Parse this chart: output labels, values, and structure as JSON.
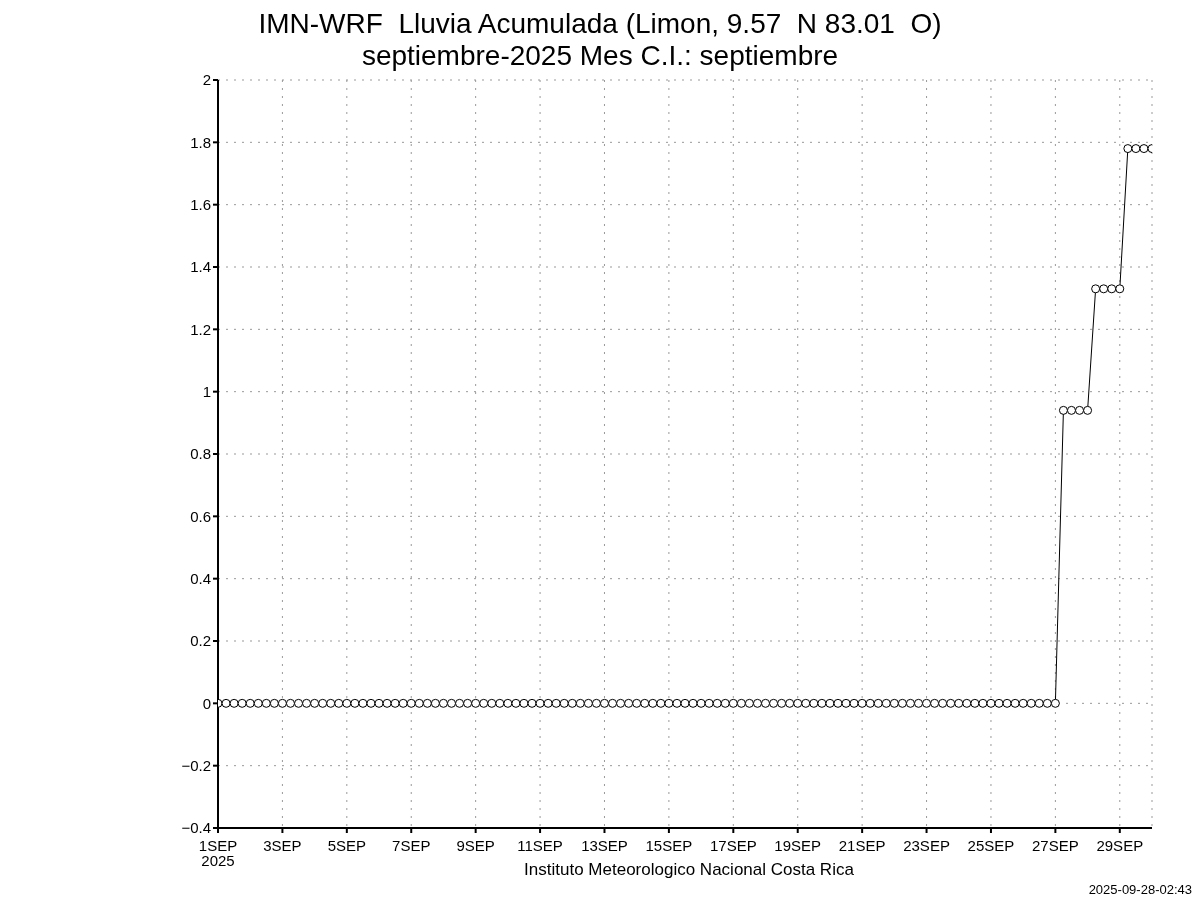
{
  "chart_data": {
    "type": "line",
    "title": "IMN-WRF  Lluvia Acumulada (Limon, 9.57  N 83.01  O)",
    "subtitle": "septiembre-2025 Mes C.I.: septiembre",
    "annotations": [
      "Instituto Meteorologico Nacional Costa Rica",
      "2025-09-28-02:43"
    ],
    "x": [
      "2025-09-01T00:00",
      "2025-09-01T06:00",
      "2025-09-01T12:00",
      "2025-09-01T18:00",
      "2025-09-02T00:00",
      "2025-09-02T06:00",
      "2025-09-02T12:00",
      "2025-09-02T18:00",
      "2025-09-03T00:00",
      "2025-09-03T06:00",
      "2025-09-03T12:00",
      "2025-09-03T18:00",
      "2025-09-04T00:00",
      "2025-09-04T06:00",
      "2025-09-04T12:00",
      "2025-09-04T18:00",
      "2025-09-05T00:00",
      "2025-09-05T06:00",
      "2025-09-05T12:00",
      "2025-09-05T18:00",
      "2025-09-06T00:00",
      "2025-09-06T06:00",
      "2025-09-06T12:00",
      "2025-09-06T18:00",
      "2025-09-07T00:00",
      "2025-09-07T06:00",
      "2025-09-07T12:00",
      "2025-09-07T18:00",
      "2025-09-08T00:00",
      "2025-09-08T06:00",
      "2025-09-08T12:00",
      "2025-09-08T18:00",
      "2025-09-09T00:00",
      "2025-09-09T06:00",
      "2025-09-09T12:00",
      "2025-09-09T18:00",
      "2025-09-10T00:00",
      "2025-09-10T06:00",
      "2025-09-10T12:00",
      "2025-09-10T18:00",
      "2025-09-11T00:00",
      "2025-09-11T06:00",
      "2025-09-11T12:00",
      "2025-09-11T18:00",
      "2025-09-12T00:00",
      "2025-09-12T06:00",
      "2025-09-12T12:00",
      "2025-09-12T18:00",
      "2025-09-13T00:00",
      "2025-09-13T06:00",
      "2025-09-13T12:00",
      "2025-09-13T18:00",
      "2025-09-14T00:00",
      "2025-09-14T06:00",
      "2025-09-14T12:00",
      "2025-09-14T18:00",
      "2025-09-15T00:00",
      "2025-09-15T06:00",
      "2025-09-15T12:00",
      "2025-09-15T18:00",
      "2025-09-16T00:00",
      "2025-09-16T06:00",
      "2025-09-16T12:00",
      "2025-09-16T18:00",
      "2025-09-17T00:00",
      "2025-09-17T06:00",
      "2025-09-17T12:00",
      "2025-09-17T18:00",
      "2025-09-18T00:00",
      "2025-09-18T06:00",
      "2025-09-18T12:00",
      "2025-09-18T18:00",
      "2025-09-19T00:00",
      "2025-09-19T06:00",
      "2025-09-19T12:00",
      "2025-09-19T18:00",
      "2025-09-20T00:00",
      "2025-09-20T06:00",
      "2025-09-20T12:00",
      "2025-09-20T18:00",
      "2025-09-21T00:00",
      "2025-09-21T06:00",
      "2025-09-21T12:00",
      "2025-09-21T18:00",
      "2025-09-22T00:00",
      "2025-09-22T06:00",
      "2025-09-22T12:00",
      "2025-09-22T18:00",
      "2025-09-23T00:00",
      "2025-09-23T06:00",
      "2025-09-23T12:00",
      "2025-09-23T18:00",
      "2025-09-24T00:00",
      "2025-09-24T06:00",
      "2025-09-24T12:00",
      "2025-09-24T18:00",
      "2025-09-25T00:00",
      "2025-09-25T06:00",
      "2025-09-25T12:00",
      "2025-09-25T18:00",
      "2025-09-26T00:00",
      "2025-09-26T06:00",
      "2025-09-26T12:00",
      "2025-09-26T18:00",
      "2025-09-27T00:00",
      "2025-09-27T06:00",
      "2025-09-27T12:00",
      "2025-09-27T18:00",
      "2025-09-28T00:00",
      "2025-09-28T06:00",
      "2025-09-28T12:00",
      "2025-09-28T18:00",
      "2025-09-29T00:00",
      "2025-09-29T06:00",
      "2025-09-29T12:00",
      "2025-09-29T18:00",
      "2025-09-30T00:00"
    ],
    "series": [
      {
        "color": "#000000",
        "values": [
          0,
          0,
          0,
          0,
          0,
          0,
          0,
          0,
          0,
          0,
          0,
          0,
          0,
          0,
          0,
          0,
          0,
          0,
          0,
          0,
          0,
          0,
          0,
          0,
          0,
          0,
          0,
          0,
          0,
          0,
          0,
          0,
          0,
          0,
          0,
          0,
          0,
          0,
          0,
          0,
          0,
          0,
          0,
          0,
          0,
          0,
          0,
          0,
          0,
          0,
          0,
          0,
          0,
          0,
          0,
          0,
          0,
          0,
          0,
          0,
          0,
          0,
          0,
          0,
          0,
          0,
          0,
          0,
          0,
          0,
          0,
          0,
          0,
          0,
          0,
          0,
          0,
          0,
          0,
          0,
          0,
          0,
          0,
          0,
          0,
          0,
          0,
          0,
          0,
          0,
          0,
          0,
          0,
          0,
          0,
          0,
          0,
          0,
          0,
          0,
          0,
          0,
          0,
          0,
          0,
          0.94,
          0.94,
          0.94,
          0.94,
          1.33,
          1.33,
          1.33,
          1.33,
          1.78,
          1.78,
          1.78,
          1.78
        ]
      }
    ],
    "xlim": [
      "2025-09-01T00:00",
      "2025-09-30T00:00"
    ],
    "xticks": [
      {
        "value": "2025-09-01",
        "label": "1SEP\n2025"
      },
      {
        "value": "2025-09-03",
        "label": "3SEP"
      },
      {
        "value": "2025-09-05",
        "label": "5SEP"
      },
      {
        "value": "2025-09-07",
        "label": "7SEP"
      },
      {
        "value": "2025-09-09",
        "label": "9SEP"
      },
      {
        "value": "2025-09-11",
        "label": "11SEP"
      },
      {
        "value": "2025-09-13",
        "label": "13SEP"
      },
      {
        "value": "2025-09-15",
        "label": "15SEP"
      },
      {
        "value": "2025-09-17",
        "label": "17SEP"
      },
      {
        "value": "2025-09-19",
        "label": "19SEP"
      },
      {
        "value": "2025-09-21",
        "label": "21SEP"
      },
      {
        "value": "2025-09-23",
        "label": "23SEP"
      },
      {
        "value": "2025-09-25",
        "label": "25SEP"
      },
      {
        "value": "2025-09-27",
        "label": "27SEP"
      },
      {
        "value": "2025-09-29",
        "label": "29SEP"
      }
    ],
    "ylim": [
      -0.4,
      2
    ],
    "yticks": [
      -0.4,
      -0.2,
      0,
      0.2,
      0.4,
      0.6,
      0.8,
      1,
      1.2,
      1.4,
      1.6,
      1.8,
      2
    ],
    "grid": true,
    "marker": "circle",
    "line_style": "solid"
  }
}
